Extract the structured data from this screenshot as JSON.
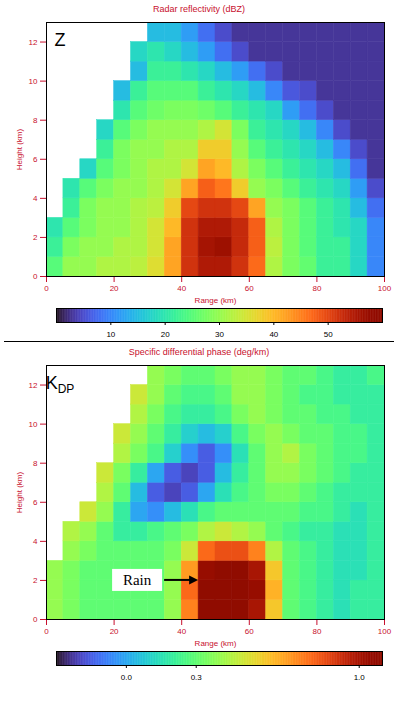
{
  "chart_data": [
    {
      "type": "heatmap",
      "title": "Radar reflectivity (dBZ)",
      "panel_label": {
        "text": "Z"
      },
      "xlabel": "Range (km)",
      "ylabel": "Height (km)",
      "xlim": [
        0,
        100
      ],
      "xticks": [
        0,
        20,
        40,
        60,
        80,
        100
      ],
      "ylim": [
        0,
        13
      ],
      "yticks": [
        0,
        2,
        4,
        6,
        8,
        10,
        12
      ],
      "x_bins": [
        0,
        5,
        10,
        15,
        20,
        25,
        30,
        35,
        40,
        45,
        50,
        55,
        60,
        65,
        70,
        75,
        80,
        85,
        90,
        95,
        100
      ],
      "y_bins": [
        0,
        1,
        2,
        3,
        4,
        5,
        6,
        7,
        8,
        9,
        10,
        11,
        12,
        13
      ],
      "values": [
        [
          25,
          30,
          30,
          32,
          32,
          33,
          36,
          42,
          52,
          55,
          55,
          52,
          47,
          32,
          28,
          26,
          22,
          22,
          18,
          10
        ],
        [
          22,
          28,
          30,
          30,
          32,
          32,
          35,
          42,
          52,
          56,
          57,
          53,
          48,
          33,
          28,
          25,
          22,
          22,
          18,
          10
        ],
        [
          20,
          25,
          28,
          30,
          30,
          32,
          35,
          40,
          52,
          55,
          55,
          53,
          48,
          32,
          28,
          25,
          22,
          20,
          18,
          10
        ],
        [
          null,
          22,
          28,
          30,
          30,
          32,
          33,
          38,
          50,
          52,
          52,
          50,
          42,
          30,
          28,
          25,
          22,
          20,
          15,
          8
        ],
        [
          null,
          20,
          25,
          28,
          30,
          30,
          32,
          35,
          42,
          48,
          46,
          38,
          30,
          28,
          25,
          22,
          20,
          18,
          12,
          5
        ],
        [
          null,
          null,
          18,
          25,
          28,
          30,
          32,
          32,
          35,
          42,
          40,
          32,
          28,
          25,
          22,
          20,
          18,
          15,
          8,
          3
        ],
        [
          null,
          null,
          null,
          22,
          28,
          30,
          30,
          32,
          32,
          38,
          38,
          30,
          25,
          22,
          20,
          18,
          15,
          10,
          5,
          3
        ],
        [
          null,
          null,
          null,
          18,
          25,
          28,
          30,
          30,
          30,
          32,
          35,
          28,
          22,
          20,
          18,
          15,
          10,
          5,
          3,
          3
        ],
        [
          null,
          null,
          null,
          null,
          20,
          25,
          27,
          28,
          28,
          27,
          25,
          22,
          20,
          18,
          12,
          8,
          5,
          3,
          3,
          3
        ],
        [
          null,
          null,
          null,
          null,
          15,
          22,
          25,
          25,
          25,
          22,
          20,
          18,
          15,
          10,
          6,
          5,
          3,
          3,
          3,
          3
        ],
        [
          null,
          null,
          null,
          null,
          null,
          15,
          22,
          22,
          20,
          18,
          15,
          12,
          8,
          5,
          3,
          3,
          3,
          3,
          3,
          3
        ],
        [
          null,
          null,
          null,
          null,
          null,
          18,
          20,
          18,
          15,
          12,
          8,
          5,
          3,
          3,
          3,
          3,
          3,
          3,
          3,
          3
        ],
        [
          null,
          null,
          null,
          null,
          null,
          null,
          15,
          15,
          12,
          8,
          5,
          3,
          3,
          3,
          3,
          3,
          3,
          3,
          3,
          3
        ]
      ],
      "colorbar": {
        "range": [
          0,
          60
        ],
        "ticks": [
          10,
          20,
          30,
          40,
          50
        ]
      }
    },
    {
      "type": "heatmap",
      "title": "Specific differential phase (deg/km)",
      "panel_label": {
        "text": "K",
        "subscript": "DP"
      },
      "xlabel": "Range (km)",
      "ylabel": "Height (km)",
      "xlim": [
        0,
        100
      ],
      "xticks": [
        0,
        20,
        40,
        60,
        80,
        100
      ],
      "ylim": [
        0,
        13
      ],
      "yticks": [
        0,
        2,
        4,
        6,
        8,
        10,
        12
      ],
      "x_bins": [
        0,
        5,
        10,
        15,
        20,
        25,
        30,
        35,
        40,
        45,
        50,
        55,
        60,
        65,
        70,
        75,
        80,
        85,
        90,
        95,
        100
      ],
      "y_bins": [
        0,
        1,
        2,
        3,
        4,
        5,
        6,
        7,
        8,
        9,
        10,
        11,
        12,
        13
      ],
      "values": [
        [
          0.4,
          0.35,
          0.3,
          0.3,
          0.3,
          0.3,
          0.3,
          0.4,
          0.75,
          1.1,
          1.1,
          1.1,
          1.0,
          0.6,
          0.3,
          0.25,
          0.2,
          0.15,
          0.2,
          0.2
        ],
        [
          0.4,
          0.35,
          0.3,
          0.3,
          0.3,
          0.3,
          0.3,
          0.4,
          0.8,
          1.1,
          1.1,
          1.1,
          1.05,
          0.65,
          0.3,
          0.25,
          0.2,
          0.15,
          0.2,
          0.2
        ],
        [
          0.4,
          0.35,
          0.3,
          0.3,
          0.3,
          0.3,
          0.3,
          0.4,
          0.7,
          1.05,
          1.1,
          1.1,
          1.0,
          0.6,
          0.3,
          0.25,
          0.2,
          0.15,
          0.15,
          0.2
        ],
        [
          null,
          0.4,
          0.35,
          0.3,
          0.3,
          0.3,
          0.3,
          0.35,
          0.5,
          0.8,
          0.85,
          0.85,
          0.75,
          0.45,
          0.3,
          0.25,
          0.2,
          0.15,
          0.15,
          0.2
        ],
        [
          null,
          0.45,
          0.4,
          0.3,
          0.2,
          0.2,
          0.25,
          0.3,
          0.35,
          0.45,
          0.5,
          0.45,
          0.4,
          0.3,
          0.25,
          0.2,
          0.2,
          0.15,
          0.15,
          0.2
        ],
        [
          null,
          null,
          0.5,
          0.4,
          0.2,
          0,
          -0.05,
          0.05,
          0.15,
          0.25,
          0.3,
          0.3,
          0.3,
          0.3,
          0.3,
          0.25,
          0.25,
          0.2,
          0.15,
          0.2
        ],
        [
          null,
          null,
          null,
          0.45,
          0.3,
          0.05,
          -0.15,
          -0.2,
          -0.15,
          0,
          0.15,
          0.25,
          0.3,
          0.35,
          0.35,
          0.3,
          0.25,
          0.2,
          0.2,
          0.2
        ],
        [
          null,
          null,
          null,
          0.5,
          0.35,
          0.2,
          0,
          -0.15,
          -0.2,
          -0.15,
          0.05,
          0.2,
          0.3,
          0.4,
          0.4,
          0.35,
          0.3,
          0.25,
          0.2,
          0.2
        ],
        [
          null,
          null,
          null,
          null,
          0.45,
          0.35,
          0.25,
          0.1,
          -0.05,
          -0.15,
          -0.05,
          0.15,
          0.3,
          0.4,
          0.45,
          0.35,
          0.3,
          0.25,
          0.25,
          0.2
        ],
        [
          null,
          null,
          null,
          null,
          0.5,
          0.4,
          0.3,
          0.2,
          0.1,
          0.05,
          0.1,
          0.25,
          0.35,
          0.4,
          0.35,
          0.3,
          0.3,
          0.25,
          0.25,
          0.2
        ],
        [
          null,
          null,
          null,
          null,
          null,
          0.45,
          0.35,
          0.25,
          0.2,
          0.2,
          0.25,
          0.35,
          0.4,
          0.35,
          0.3,
          0.3,
          0.25,
          0.25,
          0.2,
          0.2
        ],
        [
          null,
          null,
          null,
          null,
          null,
          0.5,
          0.4,
          0.3,
          0.25,
          0.25,
          0.3,
          0.4,
          0.4,
          0.35,
          0.3,
          0.25,
          0.25,
          0.2,
          0.2,
          0.2
        ],
        [
          null,
          null,
          null,
          null,
          null,
          null,
          0.4,
          0.35,
          0.3,
          0.3,
          0.35,
          0.4,
          0.4,
          0.35,
          0.3,
          0.3,
          0.25,
          0.2,
          0.2,
          0.25
        ]
      ],
      "colorbar": {
        "range": [
          -0.3,
          1.1
        ],
        "ticks": [
          {
            "value": 0,
            "label": "0.0"
          },
          {
            "value": 0.3,
            "label": "0.3"
          },
          {
            "value": 1,
            "label": "1.0"
          }
        ]
      },
      "annotations": [
        {
          "text": "Rain",
          "x": 45,
          "y": 2
        }
      ]
    }
  ]
}
